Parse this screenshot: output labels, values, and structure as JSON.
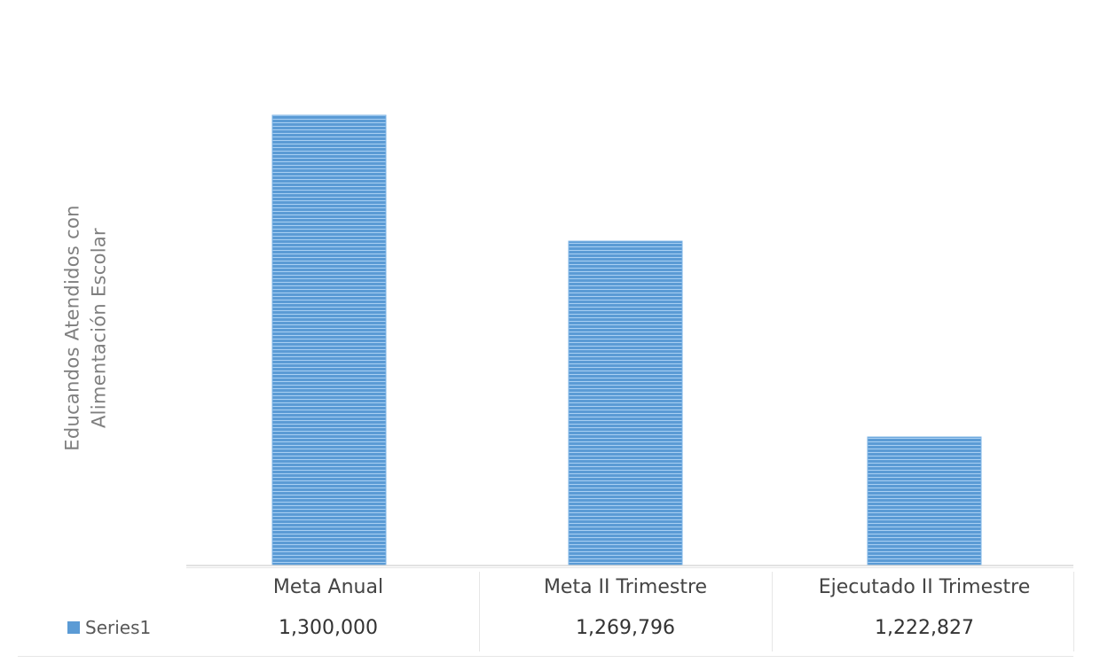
{
  "chart_data": {
    "type": "bar",
    "title": "",
    "ylabel_lines": [
      "Educandos Atendidos con",
      "Alimentación Escolar"
    ],
    "categories": [
      "Meta Anual",
      "Meta II Trimestre",
      "Ejecutado II Trimestre"
    ],
    "series": [
      {
        "name": "Series1",
        "values": [
          1300000,
          1269796,
          1222827
        ],
        "value_labels": [
          "1,300,000",
          "1,269,796",
          "1,222,827"
        ]
      }
    ],
    "axis_baseline": 1192000,
    "axis_max": 1300000,
    "grid": false,
    "legend": "data-table-left",
    "data_table": true,
    "colors": {
      "bar": "#5b9bd5",
      "bar_stripe": "#9cc8f0",
      "axis_text": "#7f7f7f"
    }
  }
}
